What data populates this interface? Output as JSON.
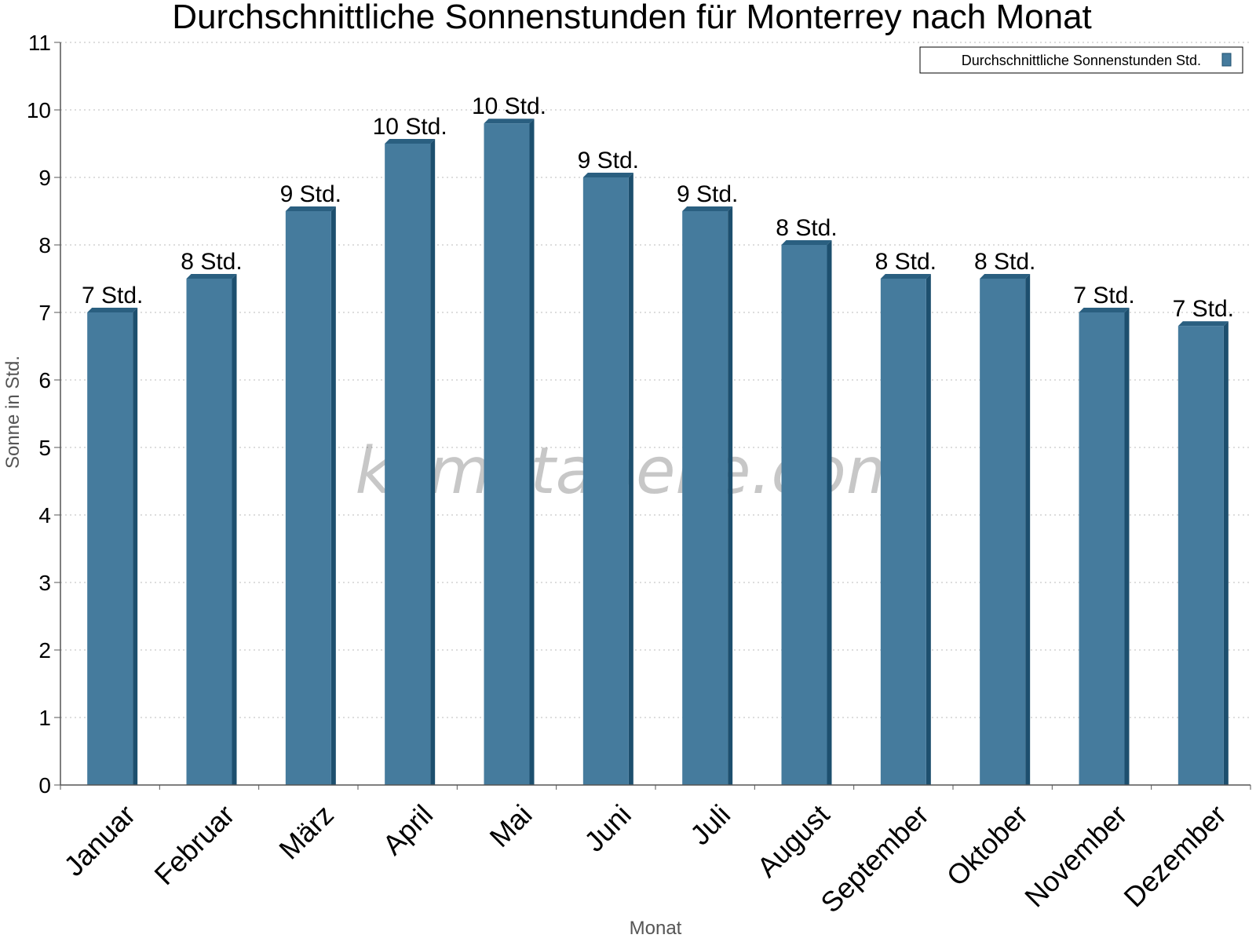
{
  "watermark": "klimatabelle.com",
  "colors": {
    "bar_front": "#457b9d",
    "bar_side": "#1d4f6e",
    "bar_top": "#2a5f80",
    "grid": "#bbbbbb",
    "axis": "#555555"
  },
  "chart_data": {
    "type": "bar",
    "title": "Durchschnittliche Sonnenstunden für Monterrey nach Monat",
    "xlabel": "Monat",
    "ylabel": "Sonne in Std.",
    "ylim": [
      0,
      11
    ],
    "yticks": [
      0,
      1,
      2,
      3,
      4,
      5,
      6,
      7,
      8,
      9,
      10,
      11
    ],
    "grid": true,
    "legend_position": "top-right",
    "categories": [
      "Januar",
      "Februar",
      "März",
      "April",
      "Mai",
      "Juni",
      "Juli",
      "August",
      "September",
      "Oktober",
      "November",
      "Dezember"
    ],
    "series": [
      {
        "name": "Durchschnittliche Sonnenstunden Std.",
        "values": [
          7.0,
          7.5,
          8.5,
          9.5,
          9.8,
          9.0,
          8.5,
          8.0,
          7.5,
          7.5,
          7.0,
          6.8
        ],
        "labels": [
          "7 Std.",
          "8 Std.",
          "9 Std.",
          "10 Std.",
          "10 Std.",
          "9 Std.",
          "9 Std.",
          "8 Std.",
          "8 Std.",
          "8 Std.",
          "7 Std.",
          "7 Std."
        ]
      }
    ]
  }
}
